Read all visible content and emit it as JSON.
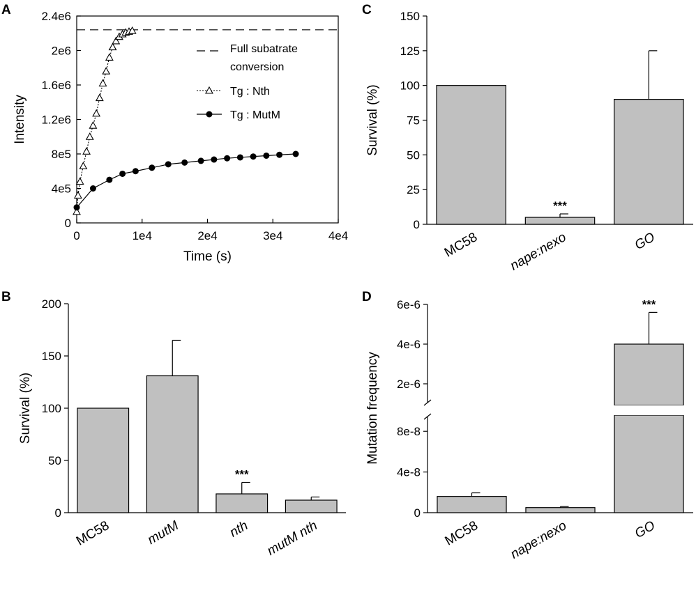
{
  "panels": {
    "A": {
      "letter": "A"
    },
    "B": {
      "letter": "B"
    },
    "C": {
      "letter": "C"
    },
    "D": {
      "letter": "D"
    }
  },
  "chart_data": [
    {
      "panel": "A",
      "type": "line",
      "xlabel": "Time (s)",
      "ylabel": "Intensity",
      "xlim": [
        0,
        40000
      ],
      "ylim": [
        0,
        2400000
      ],
      "x_ticks": [
        0,
        10000,
        20000,
        30000,
        40000
      ],
      "x_tick_labels": [
        "0",
        "1e4",
        "2e4",
        "3e4",
        "4e4"
      ],
      "y_ticks": [
        0,
        400000,
        800000,
        1200000,
        1600000,
        2000000,
        2400000
      ],
      "y_tick_labels": [
        "0",
        "4e5",
        "8e5",
        "1.2e6",
        "1.6e6",
        "2e6",
        "2.4e6"
      ],
      "reference_line": {
        "name": "Full subatrate conversion",
        "label_line1": "Full subatrate",
        "label_line2": "conversion",
        "y": 2240000,
        "style": "dashed"
      },
      "series": [
        {
          "name": "Tg : Nth",
          "marker": "open-triangle",
          "line": "dotted",
          "x": [
            0,
            200,
            500,
            1000,
            1500,
            2000,
            2500,
            3000,
            3500,
            4000,
            4500,
            5000,
            5500,
            6000,
            6500,
            7000,
            7500,
            8000,
            8500
          ],
          "y": [
            130000,
            320000,
            480000,
            660000,
            830000,
            1000000,
            1130000,
            1270000,
            1450000,
            1620000,
            1760000,
            1920000,
            2040000,
            2110000,
            2160000,
            2190000,
            2210000,
            2220000,
            2230000
          ]
        },
        {
          "name": "Tg : MutM",
          "marker": "filled-circle",
          "line": "solid",
          "x": [
            0,
            2500,
            5000,
            7000,
            9000,
            11500,
            14000,
            16500,
            19000,
            21000,
            23000,
            25000,
            27000,
            29000,
            31000,
            33500
          ],
          "y": [
            180000,
            400000,
            500000,
            570000,
            600000,
            640000,
            680000,
            700000,
            720000,
            735000,
            750000,
            760000,
            770000,
            780000,
            790000,
            800000
          ]
        }
      ]
    },
    {
      "panel": "B",
      "type": "bar",
      "xlabel": "",
      "ylabel": "Survival (%)",
      "ylim": [
        0,
        200
      ],
      "y_ticks": [
        0,
        50,
        100,
        150,
        200
      ],
      "categories": [
        "MC58",
        "mutM",
        "nth",
        "mutM nth"
      ],
      "category_italic": [
        false,
        true,
        true,
        true
      ],
      "values": [
        100,
        131,
        18,
        12
      ],
      "errors": [
        0,
        34,
        11,
        3
      ],
      "annotations": [
        "",
        "",
        "***",
        ""
      ],
      "bar_color": "#c0c0c0"
    },
    {
      "panel": "C",
      "type": "bar",
      "xlabel": "",
      "ylabel": "Survival (%)",
      "ylim": [
        0,
        150
      ],
      "y_ticks": [
        0,
        25,
        50,
        75,
        100,
        125,
        150
      ],
      "categories": [
        "MC58",
        "nape:nexo",
        "GO"
      ],
      "category_italic": [
        false,
        true,
        true
      ],
      "values": [
        100,
        5,
        90
      ],
      "errors": [
        0,
        2.5,
        35
      ],
      "annotations": [
        "",
        "***",
        ""
      ],
      "bar_color": "#c0c0c0"
    },
    {
      "panel": "D",
      "type": "bar",
      "xlabel": "",
      "ylabel": "Mutation frequency",
      "broken_axis": true,
      "lower_ylim": [
        0,
        1e-07
      ],
      "lower_y_ticks": [
        0,
        4e-08,
        8e-08
      ],
      "lower_y_tick_labels": [
        "0",
        "4e-8",
        "8e-8"
      ],
      "upper_ylim": [
        0,
        6e-06
      ],
      "upper_y_ticks": [
        2e-06,
        4e-06,
        6e-06
      ],
      "upper_y_tick_labels": [
        "2e-6",
        "4e-6",
        "6e-6"
      ],
      "categories": [
        "MC58",
        "nape:nexo",
        "GO"
      ],
      "category_italic": [
        false,
        true,
        true
      ],
      "values": [
        1.6e-08,
        5e-09,
        4e-06
      ],
      "errors": [
        3.5e-09,
        1e-09,
        1.6e-06
      ],
      "annotations": [
        "",
        "",
        "***"
      ],
      "bar_color": "#c0c0c0"
    }
  ]
}
